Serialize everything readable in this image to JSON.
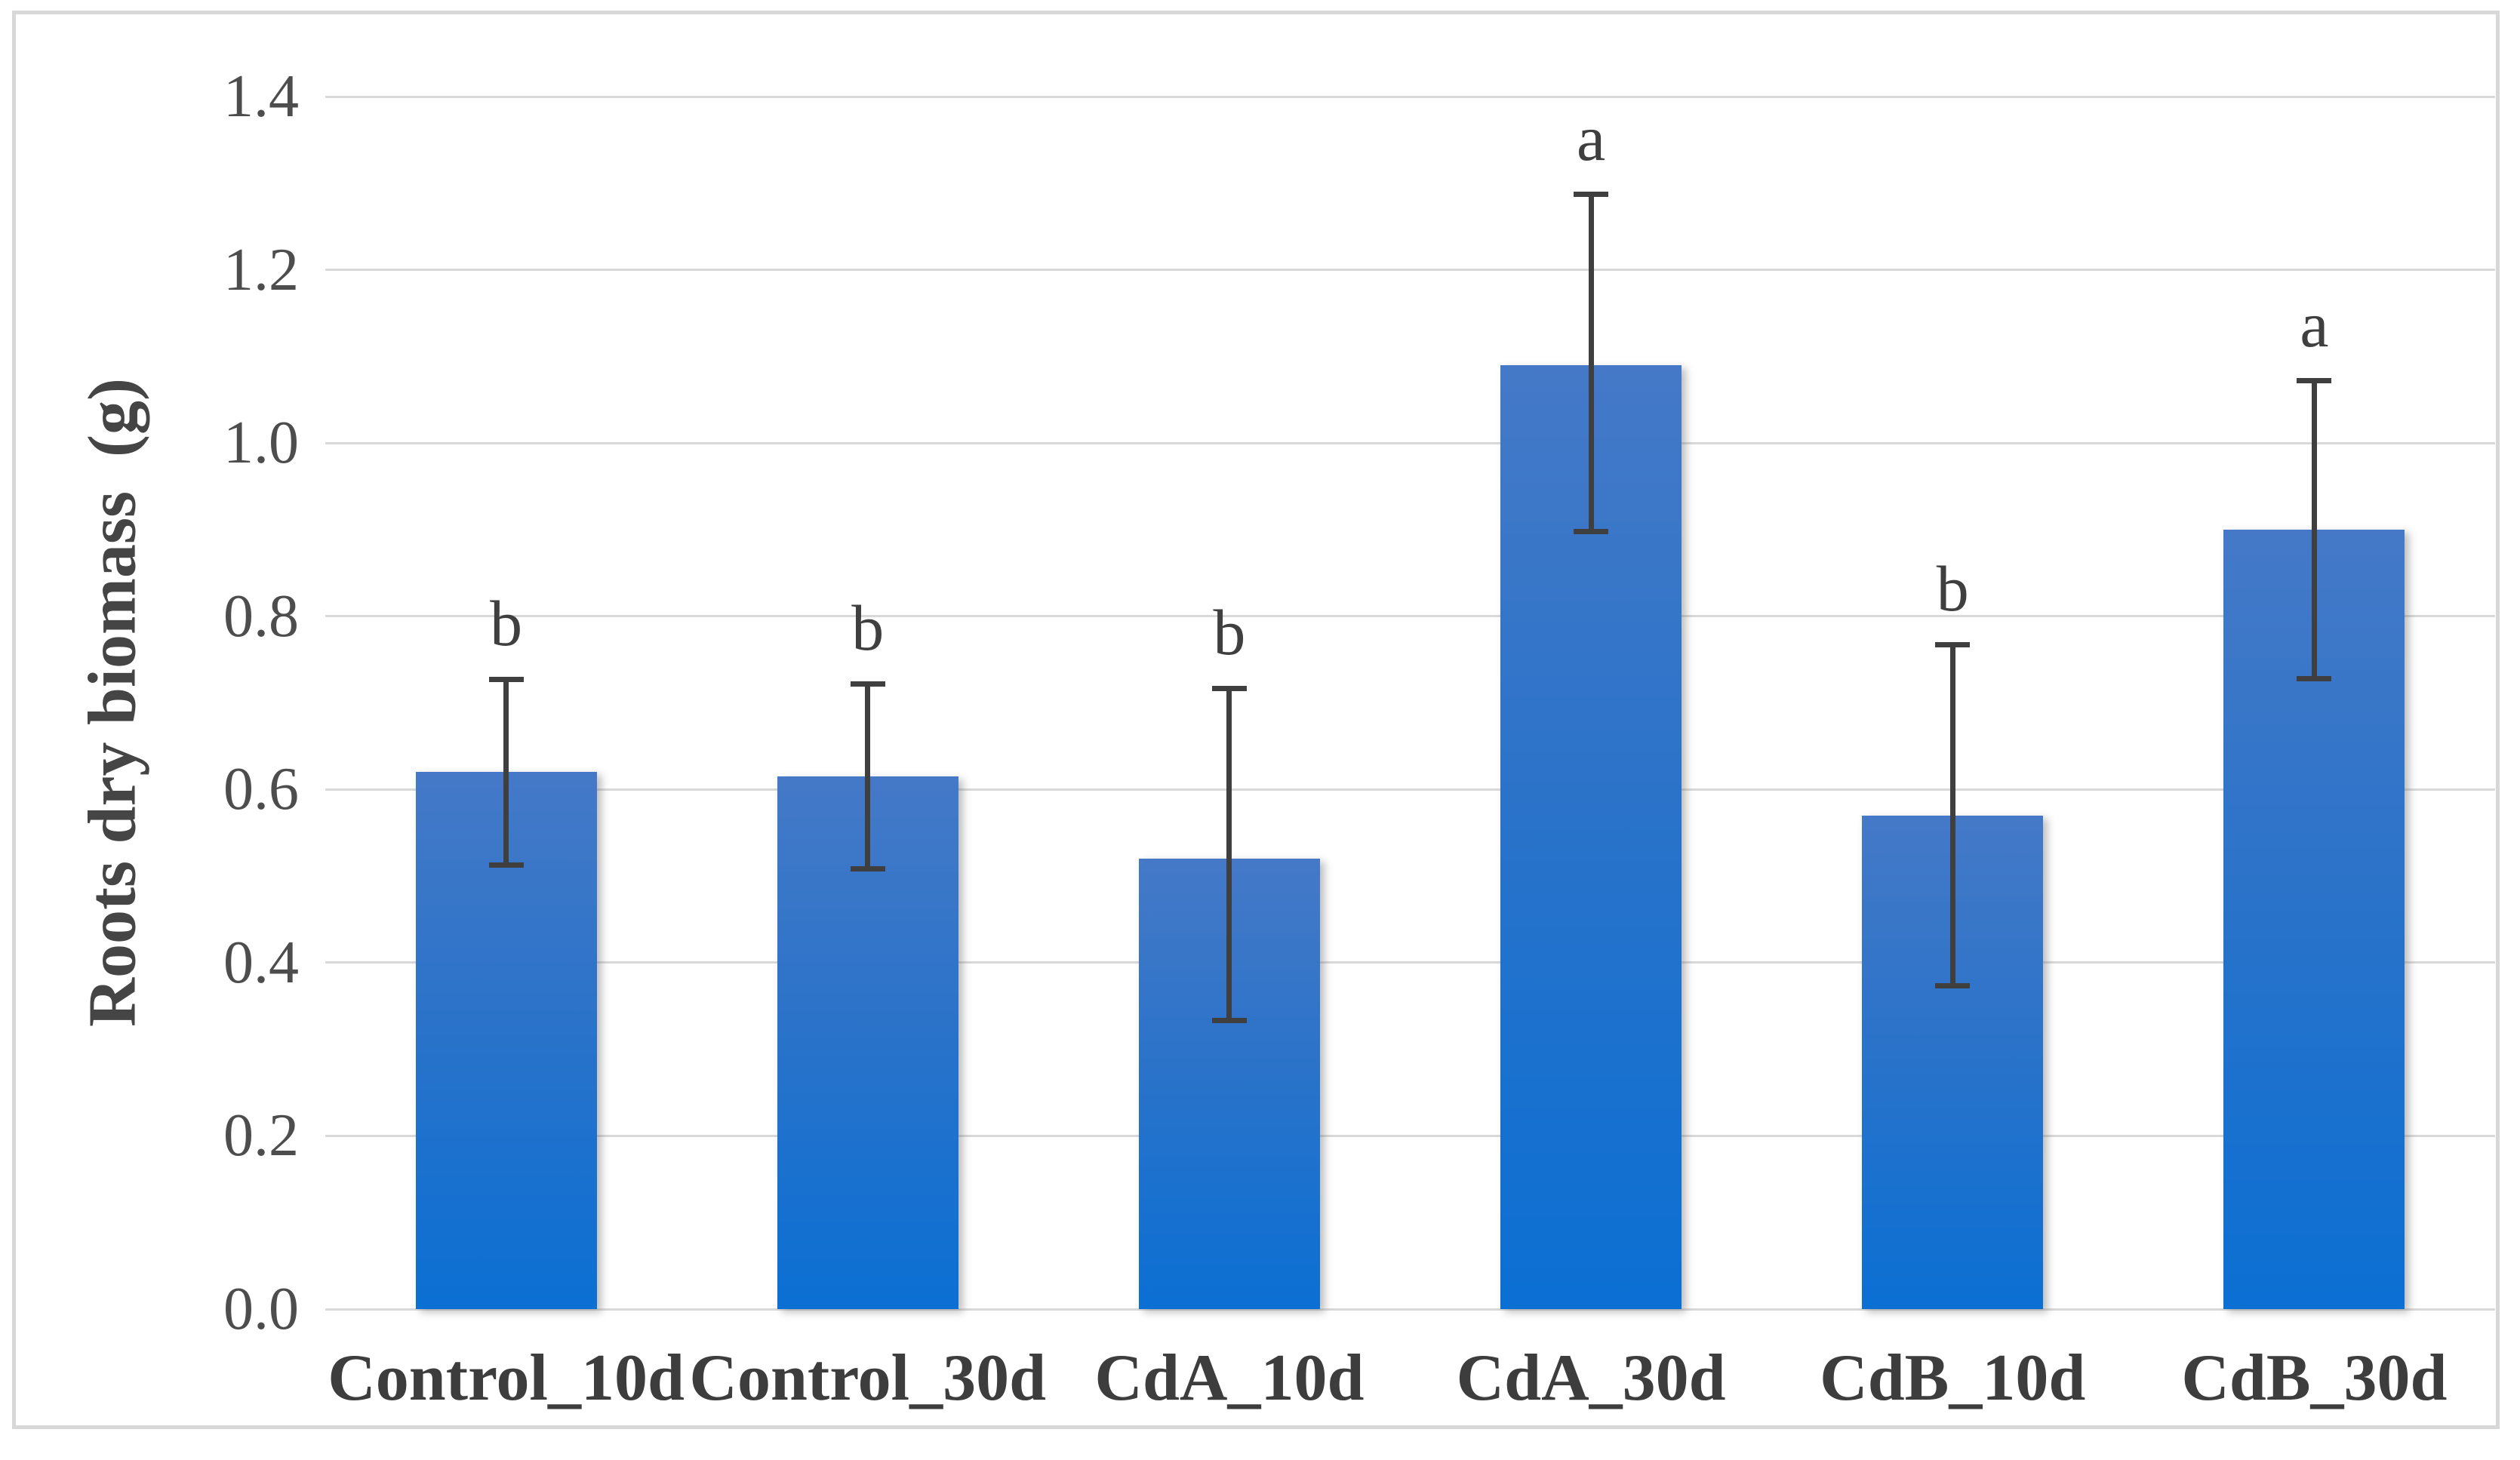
{
  "chart_data": {
    "type": "bar",
    "title": "",
    "ylabel": "Roots dry biomass  (g)",
    "xlabel": "",
    "categories": [
      "Control_10d",
      "Control_30d",
      "CdA_10d",
      "CdA_30d",
      "CdB_10d",
      "CdB_30d"
    ],
    "values": [
      0.62,
      0.615,
      0.52,
      1.09,
      0.57,
      0.9
    ],
    "error_plus": [
      0.11,
      0.11,
      0.2,
      0.2,
      0.2,
      0.175
    ],
    "error_minus": [
      0.11,
      0.11,
      0.19,
      0.195,
      0.2,
      0.175
    ],
    "sig_letters": [
      "b",
      "b",
      "b",
      "a",
      "b",
      "a"
    ],
    "ylim": [
      0,
      1.4
    ],
    "ytick_step": 0.2,
    "ytick_labels": [
      "0.0",
      "0.2",
      "0.4",
      "0.6",
      "0.8",
      "1.0",
      "1.2",
      "1.4"
    ],
    "grid": true,
    "legend": false
  },
  "colors": {
    "bar_gradient_top": "#4579c8",
    "bar_gradient_mid": "#2b73c9",
    "bar_gradient_bottom": "#0b6fd3",
    "gridline": "#d9d9d9",
    "error_bar": "#3f3f3f",
    "tick_label": "#4d4d4d",
    "x_label": "#3d3d3d",
    "axis_title": "#454545",
    "frame_border": "#d8d8d8",
    "sig_letter": "#3f3f3f"
  }
}
